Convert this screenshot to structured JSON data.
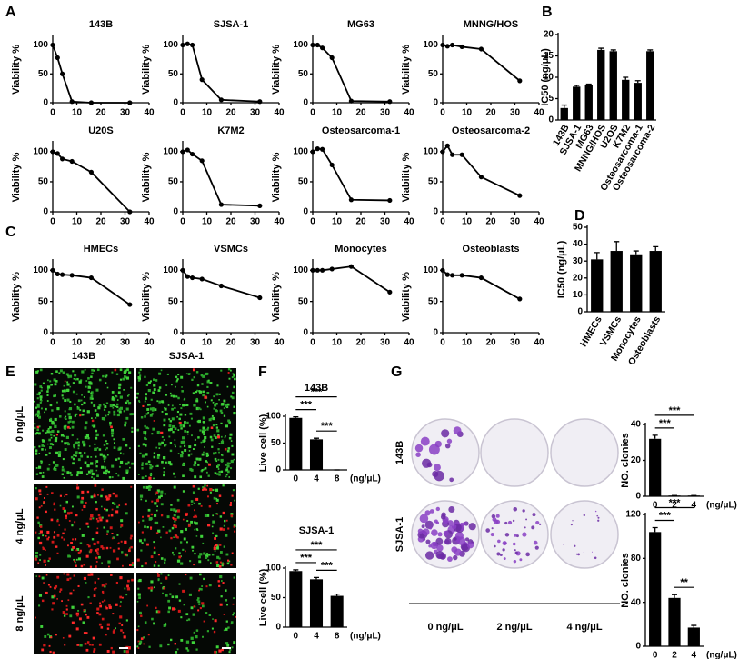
{
  "panel_labels": [
    "A",
    "B",
    "C",
    "D",
    "E",
    "F",
    "G"
  ],
  "microscopy": {
    "columns": [
      "143B",
      "SJSA-1"
    ],
    "rows": [
      "0 ng/μL",
      "4 ng/μL",
      "8 ng/μL"
    ]
  },
  "colony_assay": {
    "rows": [
      "143B",
      "SJSA-1"
    ],
    "columns": [
      "0 ng/μL",
      "2 ng/μL",
      "4 ng/μL"
    ]
  },
  "chart_data": [
    {
      "type": "line",
      "title": "143B",
      "y_label": "Viability %",
      "x": [
        0,
        2,
        4,
        8,
        16,
        32
      ],
      "values": [
        100,
        78,
        50,
        2,
        0,
        0
      ],
      "xlim": [
        0,
        40
      ],
      "xticks": [
        0,
        10,
        20,
        30,
        40
      ],
      "ylim": [
        0,
        115
      ],
      "yticks": [
        0,
        50,
        100
      ],
      "color": "#000000"
    },
    {
      "type": "line",
      "title": "SJSA-1",
      "y_label": "Viability %",
      "x": [
        0,
        2,
        4,
        8,
        16,
        32
      ],
      "values": [
        100,
        102,
        100,
        40,
        5,
        2
      ],
      "xlim": [
        0,
        40
      ],
      "xticks": [
        0,
        10,
        20,
        30,
        40
      ],
      "ylim": [
        0,
        115
      ],
      "yticks": [
        0,
        50,
        100
      ],
      "color": "#000000"
    },
    {
      "type": "line",
      "title": "MG63",
      "y_label": "Viability %",
      "x": [
        0,
        2,
        4,
        8,
        16,
        32
      ],
      "values": [
        100,
        100,
        95,
        78,
        3,
        2
      ],
      "xlim": [
        0,
        40
      ],
      "xticks": [
        0,
        10,
        20,
        30,
        40
      ],
      "ylim": [
        0,
        115
      ],
      "yticks": [
        0,
        50,
        100
      ],
      "color": "#000000"
    },
    {
      "type": "line",
      "title": "MNNG/HOS",
      "y_label": "Viability %",
      "x": [
        0,
        2,
        4,
        8,
        16,
        32
      ],
      "values": [
        100,
        98,
        100,
        97,
        93,
        38
      ],
      "xlim": [
        0,
        40
      ],
      "xticks": [
        0,
        10,
        20,
        30,
        40
      ],
      "ylim": [
        0,
        115
      ],
      "yticks": [
        0,
        50,
        100
      ],
      "color": "#000000"
    },
    {
      "type": "line",
      "title": "U20S",
      "y_label": "Viability %",
      "x": [
        0,
        2,
        4,
        8,
        16,
        32
      ],
      "values": [
        100,
        97,
        88,
        84,
        66,
        0
      ],
      "xlim": [
        0,
        40
      ],
      "xticks": [
        0,
        10,
        20,
        30,
        40
      ],
      "ylim": [
        0,
        115
      ],
      "yticks": [
        0,
        50,
        100
      ],
      "color": "#000000"
    },
    {
      "type": "line",
      "title": "K7M2",
      "y_label": "Viability %",
      "x": [
        0,
        2,
        4,
        8,
        16,
        32
      ],
      "values": [
        100,
        103,
        96,
        85,
        12,
        10
      ],
      "xlim": [
        0,
        40
      ],
      "xticks": [
        0,
        10,
        20,
        30,
        40
      ],
      "ylim": [
        0,
        115
      ],
      "yticks": [
        0,
        50,
        100
      ],
      "color": "#000000"
    },
    {
      "type": "line",
      "title": "Osteosarcoma-1",
      "y_label": "Viability %",
      "x": [
        0,
        2,
        4,
        8,
        16,
        32
      ],
      "values": [
        100,
        105,
        104,
        78,
        20,
        19
      ],
      "xlim": [
        0,
        40
      ],
      "xticks": [
        0,
        10,
        20,
        30,
        40
      ],
      "ylim": [
        0,
        115
      ],
      "yticks": [
        0,
        50,
        100
      ],
      "color": "#000000"
    },
    {
      "type": "line",
      "title": "Osteosarcoma-2",
      "y_label": "Viability %",
      "x": [
        0,
        2,
        4,
        8,
        16,
        32
      ],
      "values": [
        100,
        110,
        95,
        95,
        58,
        27
      ],
      "xlim": [
        0,
        40
      ],
      "xticks": [
        0,
        10,
        20,
        30,
        40
      ],
      "ylim": [
        0,
        115
      ],
      "yticks": [
        0,
        50,
        100
      ],
      "color": "#000000"
    },
    {
      "type": "line",
      "title": "HMECs",
      "y_label": "Viability %",
      "x": [
        0,
        2,
        4,
        8,
        16,
        32
      ],
      "values": [
        100,
        94,
        93,
        92,
        88,
        45
      ],
      "xlim": [
        0,
        40
      ],
      "xticks": [
        0,
        10,
        20,
        30,
        40
      ],
      "ylim": [
        0,
        115
      ],
      "yticks": [
        0,
        50,
        100
      ],
      "color": "#000000"
    },
    {
      "type": "line",
      "title": "VSMCs",
      "y_label": "Viability %",
      "x": [
        0,
        2,
        4,
        8,
        16,
        32
      ],
      "values": [
        100,
        90,
        88,
        86,
        75,
        56
      ],
      "xlim": [
        0,
        40
      ],
      "xticks": [
        0,
        10,
        20,
        30,
        40
      ],
      "ylim": [
        0,
        115
      ],
      "yticks": [
        0,
        50,
        100
      ],
      "color": "#000000"
    },
    {
      "type": "line",
      "title": "Monocytes",
      "y_label": "Viability %",
      "x": [
        0,
        2,
        4,
        8,
        16,
        32
      ],
      "values": [
        100,
        100,
        100,
        102,
        106,
        65
      ],
      "xlim": [
        0,
        40
      ],
      "xticks": [
        0,
        10,
        20,
        30,
        40
      ],
      "ylim": [
        0,
        115
      ],
      "yticks": [
        0,
        50,
        100
      ],
      "color": "#000000"
    },
    {
      "type": "line",
      "title": "Osteoblasts",
      "y_label": "Viability %",
      "x": [
        0,
        2,
        4,
        8,
        16,
        32
      ],
      "values": [
        100,
        93,
        92,
        92,
        88,
        54
      ],
      "xlim": [
        0,
        40
      ],
      "xticks": [
        0,
        10,
        20,
        30,
        40
      ],
      "ylim": [
        0,
        115
      ],
      "yticks": [
        0,
        50,
        100
      ],
      "color": "#000000"
    },
    {
      "type": "bar",
      "y_label": "IC50 (ng/μL)",
      "categories": [
        "143B",
        "SJSA-1",
        "MG63",
        "MNNG/HOS",
        "U2OS",
        "K7M2",
        "Osteosarcoma-1",
        "Osteosarcoma-2"
      ],
      "values": [
        2.8,
        7.8,
        8.1,
        16.4,
        16.1,
        9.4,
        8.7,
        16.1
      ],
      "errors": [
        0.7,
        0.3,
        0.3,
        0.4,
        0.3,
        0.6,
        0.5,
        0.3
      ],
      "ylim": [
        0,
        20
      ],
      "yticks": [
        0,
        5,
        10,
        15,
        20
      ],
      "color": "#000000"
    },
    {
      "type": "bar",
      "y_label": "IC50 (ng/μL)",
      "categories": [
        "HMECs",
        "VSMCs",
        "Monocytes",
        "Osteoblasts"
      ],
      "values": [
        31,
        36,
        34,
        36
      ],
      "errors": [
        4,
        5.5,
        2,
        2.5
      ],
      "ylim": [
        0,
        50
      ],
      "yticks": [
        0,
        10,
        20,
        30,
        40,
        50
      ],
      "color": "#000000"
    },
    {
      "type": "bar",
      "title": "143B",
      "y_label": "Live cell (%)",
      "x_label": "(ng/μL)",
      "categories": [
        "0",
        "4",
        "8"
      ],
      "values": [
        97,
        57,
        0
      ],
      "errors": [
        2,
        2,
        0
      ],
      "ylim": [
        0,
        100
      ],
      "yticks": [
        0,
        50,
        100
      ],
      "color": "#000000",
      "comparisons": [
        {
          "pair": [
            "0",
            "4"
          ],
          "label": "***"
        },
        {
          "pair": [
            "4",
            "8"
          ],
          "label": "***"
        },
        {
          "pair": [
            "0",
            "8"
          ],
          "label": "***"
        }
      ]
    },
    {
      "type": "bar",
      "title": "SJSA-1",
      "y_label": "Live cell (%)",
      "x_label": "(ng/μL)",
      "categories": [
        "0",
        "4",
        "8"
      ],
      "values": [
        95,
        81,
        53
      ],
      "errors": [
        2,
        3,
        3
      ],
      "ylim": [
        0,
        100
      ],
      "yticks": [
        0,
        50,
        100
      ],
      "color": "#000000",
      "comparisons": [
        {
          "pair": [
            "0",
            "4"
          ],
          "label": "***"
        },
        {
          "pair": [
            "4",
            "8"
          ],
          "label": "***"
        },
        {
          "pair": [
            "0",
            "8"
          ],
          "label": "***"
        }
      ]
    },
    {
      "type": "bar",
      "y_label": "NO. clonies",
      "x_label": "(ng/μL)",
      "categories": [
        "0",
        "2",
        "4"
      ],
      "values": [
        32,
        0.4,
        0.4
      ],
      "errors": [
        2,
        0,
        0
      ],
      "ylim": [
        0,
        40
      ],
      "yticks": [
        0,
        20,
        40
      ],
      "color": "#000000",
      "comparisons": [
        {
          "pair": [
            "0",
            "2"
          ],
          "label": "***"
        },
        {
          "pair": [
            "0",
            "4"
          ],
          "label": "***"
        }
      ]
    },
    {
      "type": "bar",
      "y_label": "NO. clonies",
      "x_label": "(ng/μL)",
      "categories": [
        "0",
        "2",
        "4"
      ],
      "values": [
        104,
        44,
        17
      ],
      "errors": [
        4,
        3,
        2
      ],
      "ylim": [
        0,
        120
      ],
      "yticks": [
        0,
        40,
        80,
        120
      ],
      "color": "#000000",
      "comparisons": [
        {
          "pair": [
            "0",
            "2"
          ],
          "label": "***"
        },
        {
          "pair": [
            "2",
            "4"
          ],
          "label": "**"
        },
        {
          "pair": [
            "0",
            "4"
          ],
          "label": "***"
        }
      ]
    }
  ]
}
